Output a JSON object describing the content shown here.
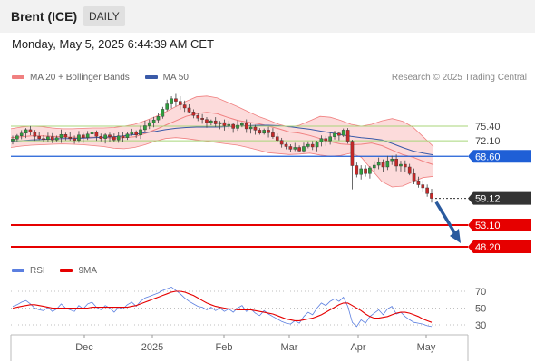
{
  "header": {
    "instrument": "Brent (ICE)",
    "timeframe": "DAILY",
    "datetime": "Monday, May 5, 2025 6:44:39 AM CET"
  },
  "legend": {
    "bollinger": "MA 20 + Bollinger Bands",
    "ma50": "MA 50",
    "rsi": "RSI",
    "ma9": "9MA",
    "source": "Research © 2025 Trading Central"
  },
  "colors": {
    "bollinger": "#f08080",
    "bollinger_fill": "#fbd5d5",
    "ma50": "#3a5aa8",
    "resistance": "#a8d67a",
    "pivot": "#1f5fd6",
    "support": "#e60000",
    "current": "#333333",
    "rsi": "#5b7fe0",
    "rsi_ma": "#e60000",
    "arrow": "#2a5a9e"
  },
  "chart_data": [
    {
      "type": "candlestick",
      "x_labels": [
        "Dec",
        "2025",
        "Feb",
        "Mar",
        "Apr",
        "May"
      ],
      "y_levels": [
        {
          "value": "75.40",
          "kind": "resistance"
        },
        {
          "value": "72.10",
          "kind": "resistance"
        },
        {
          "value": "68.60",
          "kind": "pivot"
        },
        {
          "value": "59.12",
          "kind": "current"
        },
        {
          "value": "53.10",
          "kind": "support"
        },
        {
          "value": "48.20",
          "kind": "support"
        }
      ],
      "close_path": [
        72.5,
        73.2,
        73.8,
        74.6,
        74.0,
        73.1,
        72.6,
        72.4,
        73.0,
        72.3,
        72.8,
        73.5,
        72.9,
        72.6,
        72.2,
        73.4,
        72.8,
        73.6,
        74.0,
        73.1,
        72.6,
        73.4,
        73.0,
        72.3,
        73.2,
        72.8,
        73.6,
        74.1,
        73.4,
        74.6,
        75.5,
        76.2,
        76.8,
        77.6,
        79.2,
        80.4,
        81.6,
        81.0,
        80.2,
        79.5,
        78.6,
        77.8,
        77.2,
        76.9,
        76.2,
        76.6,
        75.9,
        76.2,
        75.5,
        75.8,
        74.9,
        75.6,
        76.0,
        74.8,
        75.2,
        74.5,
        73.8,
        74.5,
        73.9,
        73.0,
        72.2,
        71.3,
        70.8,
        70.2,
        70.6,
        69.8,
        70.8,
        71.3,
        70.7,
        71.8,
        72.6,
        72.1,
        73.0,
        73.8,
        73.3,
        74.5,
        72.0,
        66.5,
        64.5,
        65.8,
        64.7,
        66.0,
        66.6,
        67.2,
        66.2,
        67.6,
        68.0,
        66.4,
        66.8,
        66.2,
        64.7,
        63.1,
        62.2,
        61.5,
        60.2,
        59.12
      ],
      "bollinger_upper_path": [
        74.8,
        75.2,
        75.4,
        75.3,
        75.0,
        74.8,
        74.8,
        74.9,
        75.0,
        75.0,
        75.1,
        75.4,
        75.8,
        76.6,
        77.5,
        78.6,
        79.8,
        81.0,
        82.0,
        82.2,
        81.8,
        80.8,
        79.8,
        78.7,
        77.6,
        76.8,
        75.8,
        75.2,
        75.6,
        76.6,
        77.6,
        77.4,
        76.7,
        75.8,
        75.4,
        75.8,
        76.6,
        77.1,
        76.5,
        75.2,
        73.0,
        70.8
      ],
      "bollinger_lower_path": [
        70.6,
        70.9,
        71.1,
        71.2,
        71.3,
        71.4,
        71.3,
        71.2,
        71.0,
        70.8,
        70.4,
        70.3,
        70.6,
        71.2,
        72.0,
        72.6,
        72.8,
        72.6,
        72.3,
        72.0,
        71.7,
        71.4,
        71.1,
        70.6,
        70.0,
        69.4,
        69.2,
        69.0,
        69.1,
        69.3,
        68.9,
        68.6,
        68.8,
        69.3,
        68.4,
        65.6,
        62.9,
        61.7,
        61.9,
        62.9,
        63.8,
        64.1
      ],
      "ma20_path": [
        72.8,
        73.0,
        73.2,
        73.2,
        73.1,
        73.0,
        72.9,
        72.9,
        72.9,
        72.8,
        72.7,
        72.8,
        73.0,
        73.7,
        74.6,
        75.6,
        76.6,
        77.6,
        78.2,
        78.5,
        78.2,
        77.4,
        76.7,
        76.3,
        76.0,
        75.4,
        74.8,
        74.1,
        73.8,
        73.3,
        72.6,
        71.9,
        71.4,
        71.2,
        71.3,
        71.6,
        71.0,
        70.0,
        69.0,
        68.4,
        67.5,
        66.7
      ],
      "ma50_path": [
        72.0,
        72.1,
        72.3,
        72.4,
        72.5,
        72.6,
        72.6,
        72.7,
        72.8,
        72.9,
        73.0,
        73.2,
        73.5,
        73.9,
        74.2,
        74.6,
        74.9,
        75.1,
        75.2,
        75.2,
        75.2,
        75.3,
        75.4,
        75.5,
        75.6,
        75.6,
        75.5,
        75.3,
        75.0,
        74.7,
        74.3,
        73.9,
        73.5,
        73.1,
        72.8,
        72.6,
        72.3,
        71.5,
        70.6,
        69.8,
        69.3,
        68.9
      ],
      "projection": {
        "from": 59.12,
        "to": 48.2
      },
      "title": "",
      "xlabel": "",
      "ylabel": ""
    },
    {
      "type": "line",
      "name": "RSI panel",
      "y_ticks": [
        "70",
        "50",
        "30"
      ],
      "series": [
        {
          "name": "RSI",
          "values": [
            52,
            54,
            57,
            59,
            55,
            50,
            48,
            47,
            51,
            46,
            49,
            55,
            50,
            48,
            46,
            53,
            49,
            55,
            57,
            51,
            48,
            53,
            50,
            45,
            51,
            49,
            54,
            57,
            52,
            58,
            62,
            64,
            66,
            68,
            71,
            73,
            75,
            71,
            67,
            62,
            58,
            55,
            52,
            51,
            48,
            51,
            47,
            50,
            46,
            49,
            45,
            50,
            53,
            46,
            49,
            44,
            41,
            47,
            43,
            40,
            37,
            34,
            32,
            31,
            35,
            32,
            40,
            45,
            42,
            50,
            56,
            53,
            58,
            61,
            58,
            63,
            52,
            33,
            28,
            36,
            32,
            40,
            44,
            48,
            42,
            49,
            52,
            43,
            45,
            40,
            36,
            33,
            32,
            31,
            29,
            28
          ]
        },
        {
          "name": "9MA",
          "values": [
            50,
            51,
            52,
            53,
            54,
            54,
            53,
            52,
            51,
            50,
            50,
            50,
            50,
            50,
            50,
            50,
            50,
            50,
            51,
            51,
            51,
            51,
            51,
            51,
            51,
            51,
            51,
            52,
            53,
            55,
            57,
            59,
            61,
            63,
            65,
            67,
            69,
            70,
            70,
            69,
            67,
            65,
            62,
            59,
            56,
            54,
            52,
            51,
            50,
            49,
            49,
            48,
            48,
            48,
            48,
            47,
            46,
            45,
            44,
            43,
            41,
            39,
            37,
            36,
            35,
            35,
            36,
            37,
            38,
            40,
            42,
            45,
            48,
            51,
            54,
            56,
            56,
            53,
            50,
            47,
            43,
            40,
            38,
            38,
            39,
            40,
            42,
            44,
            45,
            45,
            44,
            42,
            40,
            37,
            35,
            33
          ]
        }
      ]
    }
  ]
}
